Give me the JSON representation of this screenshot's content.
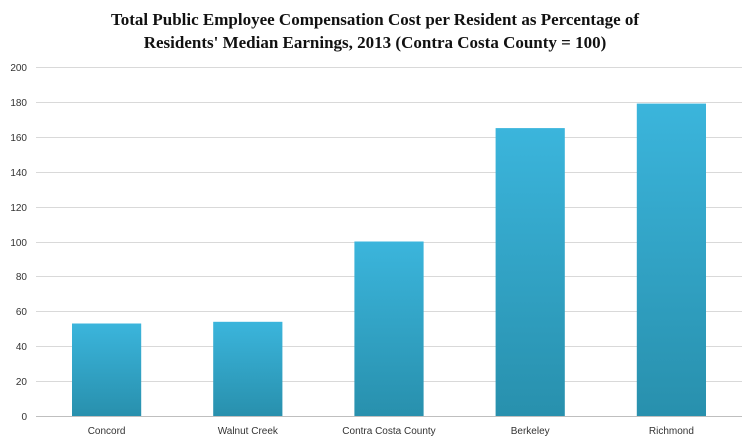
{
  "chart_data": {
    "type": "bar",
    "title_lines": [
      "Total Public Employee Compensation Cost per Resident as Percentage of",
      "Residents' Median Earnings, 2013  (Contra Costa County = 100)"
    ],
    "categories": [
      "Concord",
      "Walnut Creek",
      "Contra Costa County",
      "Berkeley",
      "Richmond"
    ],
    "values": [
      53,
      54,
      100,
      165,
      179
    ],
    "ylim": [
      0,
      200
    ],
    "yticks": [
      0,
      20,
      40,
      60,
      80,
      100,
      120,
      140,
      160,
      180,
      200
    ],
    "xlabel": "",
    "ylabel": "",
    "grid": "horizontal",
    "legend": "none",
    "colors": {
      "bar_top": "#3bb5dc",
      "bar_bottom": "#2890ad",
      "grid": "#d9d9d9",
      "axis": "#bfbfbf"
    }
  }
}
